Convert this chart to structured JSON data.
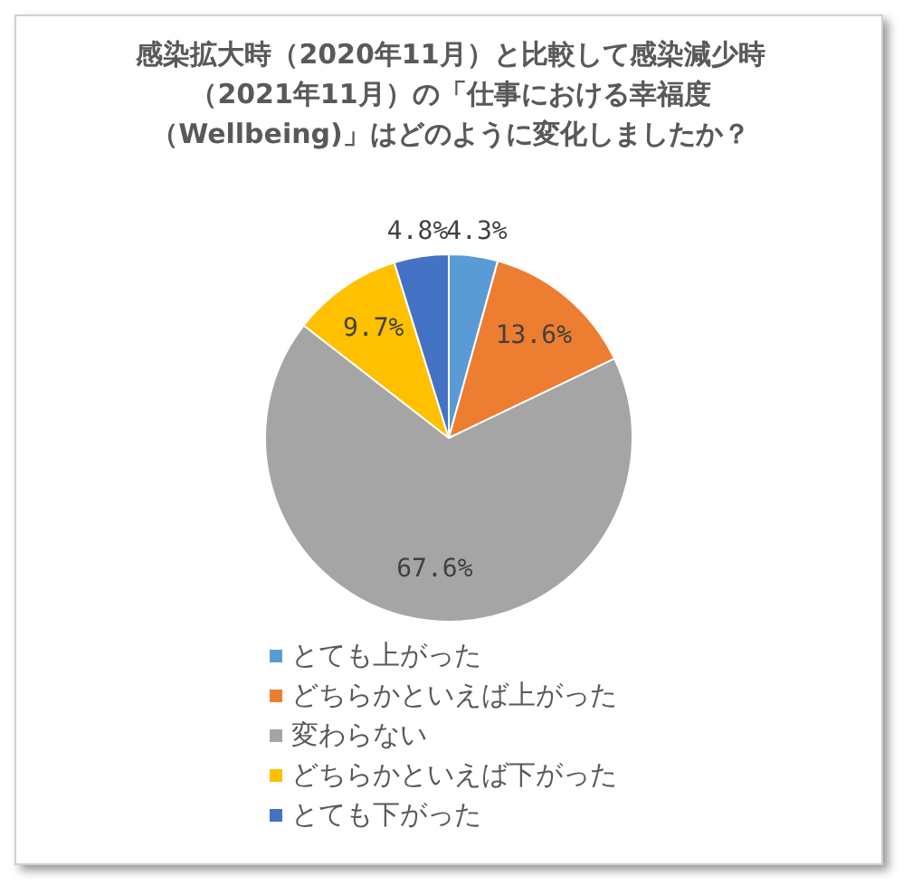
{
  "chart_data": {
    "type": "pie",
    "title": "感染拡大時（2020年11月）と比較して感染減少時（2021年11月）の「仕事における幸福度（Wellbeing)」はどのように変化しましたか？",
    "categories": [
      "とても上がった",
      "どちらかといえば上がった",
      "変わらない",
      "どちらかといえば下がった",
      "とても下がった"
    ],
    "values": [
      4.3,
      13.6,
      67.6,
      9.7,
      4.8
    ],
    "colors": [
      "#5b9bd5",
      "#ed7d31",
      "#a5a5a5",
      "#ffc000",
      "#4472c4"
    ],
    "value_labels": [
      "4.3%",
      "13.6%",
      "67.6%",
      "9.7%",
      "4.8%"
    ],
    "legend": "bottom"
  }
}
